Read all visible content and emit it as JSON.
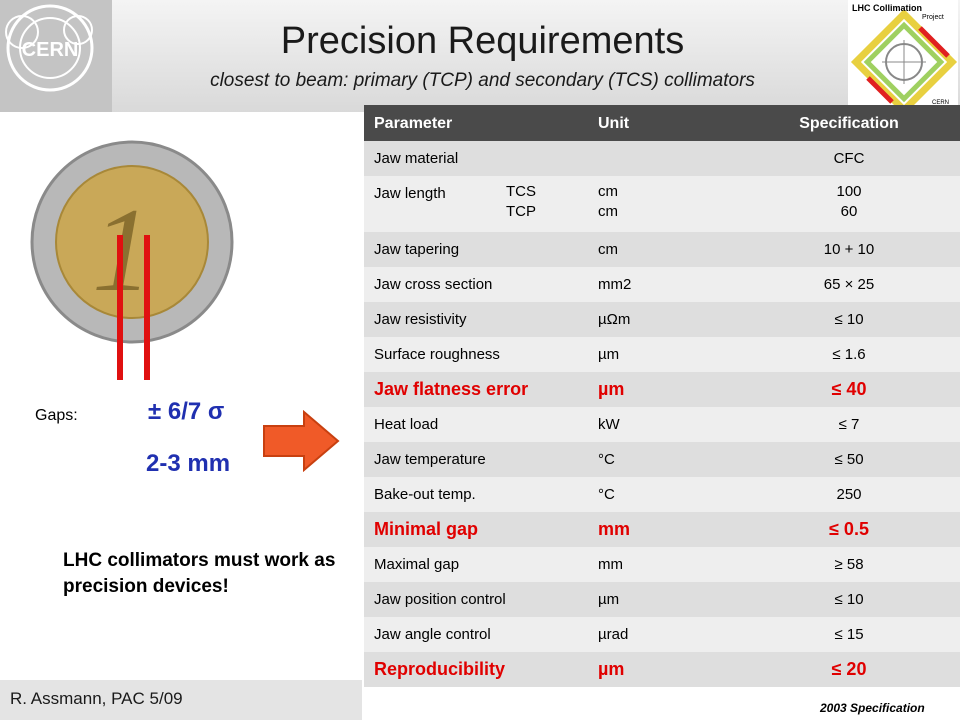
{
  "header": {
    "title": "Precision Requirements",
    "subtitle": "closest to beam: primary (TCP) and secondary (TCS) collimators"
  },
  "logos": {
    "cern": "CERN",
    "lhc_title": "LHC Collimation",
    "lhc_sub": "Project",
    "lhc_cern": "CERN"
  },
  "left": {
    "gaps_label": "Gaps:",
    "gap_sigma": "± 6/7 σ",
    "gap_mm": "2-3 mm",
    "message": "LHC collimators must work as precision devices!"
  },
  "footer": {
    "author": "R. Assmann, PAC 5/09",
    "spec_note": "2003 Specification"
  },
  "table": {
    "headers": {
      "param": "Parameter",
      "unit": "Unit",
      "spec": "Specification"
    },
    "rows": [
      {
        "param": "Jaw material",
        "unit": "",
        "spec": "CFC"
      },
      {
        "param": "Jaw length",
        "sub1": "TCS",
        "sub2": "TCP",
        "unit1": "cm",
        "unit2": "cm",
        "spec1": "100",
        "spec2": "60"
      },
      {
        "param": "Jaw tapering",
        "unit": "cm",
        "spec": "10 + 10"
      },
      {
        "param": "Jaw cross section",
        "unit": "mm2",
        "spec": "65 × 25"
      },
      {
        "param": "Jaw resistivity",
        "unit": "µΩm",
        "spec": "≤ 10"
      },
      {
        "param": "Surface roughness",
        "unit": "µm",
        "spec": "≤ 1.6"
      },
      {
        "param": "Jaw flatness error",
        "unit": "µm",
        "spec": "≤ 40"
      },
      {
        "param": "Heat load",
        "unit": "kW",
        "spec": "≤ 7"
      },
      {
        "param": "Jaw temperature",
        "unit": "°C",
        "spec": "≤ 50"
      },
      {
        "param": "Bake-out temp.",
        "unit": "°C",
        "spec": "250"
      },
      {
        "param": "Minimal gap",
        "unit": "mm",
        "spec": "≤ 0.5"
      },
      {
        "param": "Maximal gap",
        "unit": "mm",
        "spec": "≥ 58"
      },
      {
        "param": "Jaw position control",
        "unit": "µm",
        "spec": "≤ 10"
      },
      {
        "param": "Jaw angle control",
        "unit": "µrad",
        "spec": "≤ 15"
      },
      {
        "param": "Reproducibility",
        "unit": "µm",
        "spec": "≤ 20"
      }
    ]
  },
  "colors": {
    "highlight": "#e00000",
    "accent_blue": "#2030b0",
    "arrow": "#f05a28",
    "header_bg": "#4a4a4a"
  }
}
